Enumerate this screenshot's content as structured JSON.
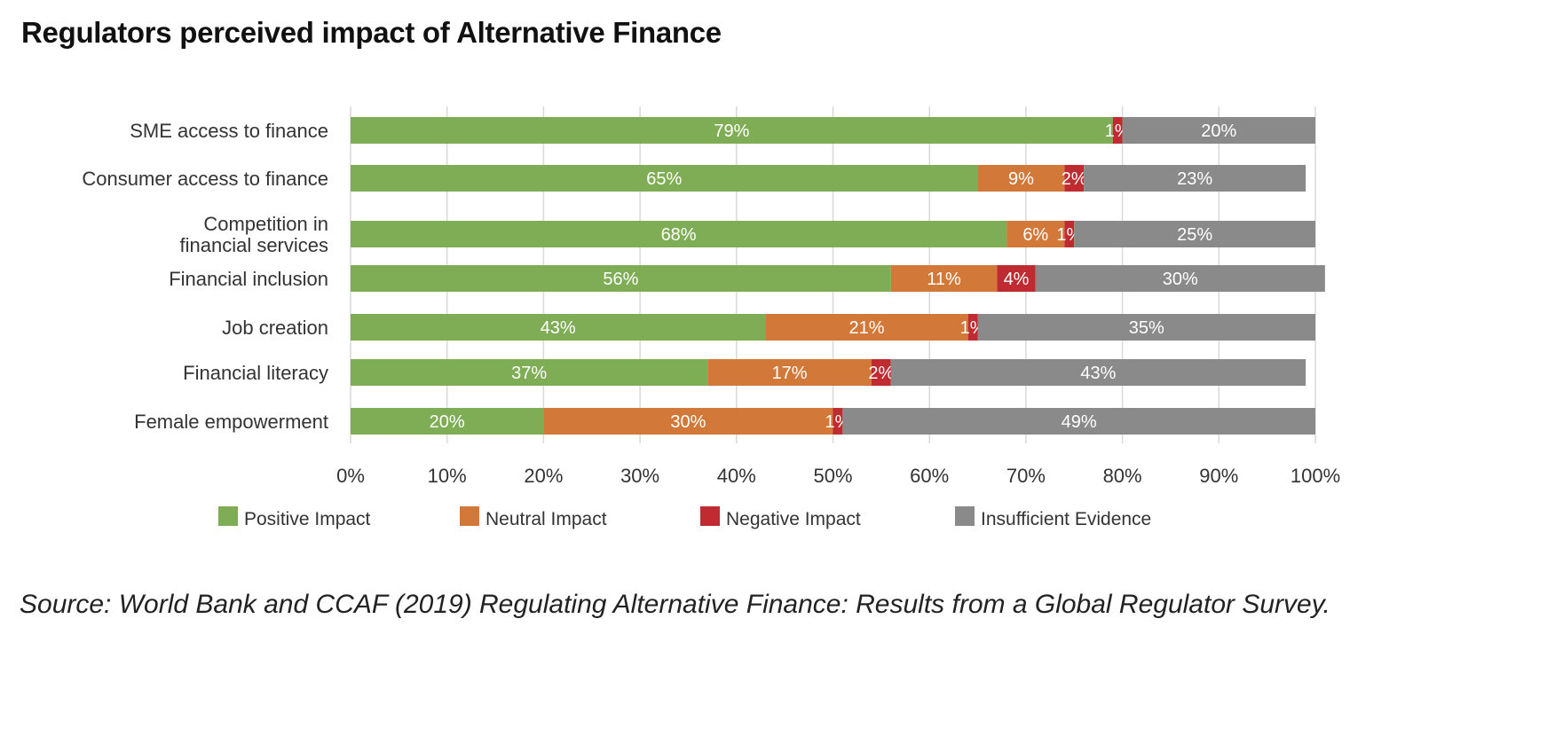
{
  "title": "Regulators perceived impact of Alternative Finance",
  "source": "Source: World Bank and CCAF (2019) Regulating Alternative Finance: Results from a Global Regulator Survey.",
  "chart_data": {
    "type": "bar",
    "orientation": "horizontal",
    "stacked": true,
    "categories": [
      [
        "SME access to finance"
      ],
      [
        "Consumer access to finance"
      ],
      [
        "Competition in",
        "financial services"
      ],
      [
        "Financial inclusion"
      ],
      [
        "Job creation"
      ],
      [
        "Financial literacy"
      ],
      [
        "Female empowerment"
      ]
    ],
    "series": [
      {
        "name": "Positive Impact",
        "color": "#7fad55",
        "values": [
          79,
          65,
          68,
          56,
          43,
          37,
          20
        ]
      },
      {
        "name": "Neutral Impact",
        "color": "#d2793a",
        "values": [
          0,
          9,
          6,
          11,
          21,
          17,
          30
        ]
      },
      {
        "name": "Negative Impact",
        "color": "#bf2b30",
        "values": [
          1,
          2,
          1,
          4,
          1,
          2,
          1
        ]
      },
      {
        "name": "Insufficient Evidence",
        "color": "#8a8a8a",
        "values": [
          20,
          23,
          25,
          30,
          35,
          43,
          49
        ]
      }
    ],
    "xlim": [
      0,
      100
    ],
    "xticks": [
      "0%",
      "10%",
      "20%",
      "30%",
      "40%",
      "50%",
      "60%",
      "70%",
      "80%",
      "90%",
      "100%"
    ],
    "grid": true,
    "legend_position": "bottom"
  }
}
